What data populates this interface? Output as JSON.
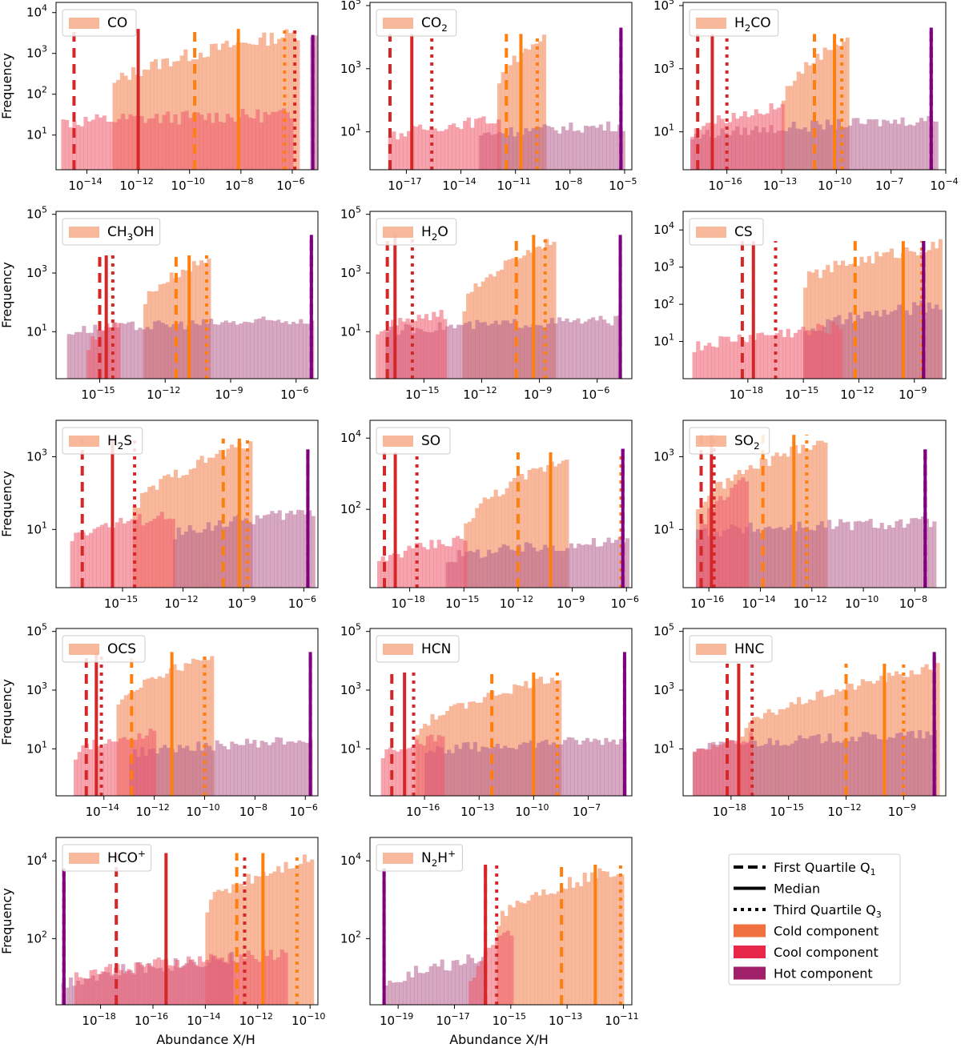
{
  "figure": {
    "ylabel": "Frequency",
    "xlabel": "Abundance X/H"
  },
  "legend": {
    "items": [
      {
        "label": "First Quartile Q",
        "sub": "1",
        "style": "dashed",
        "color": "#000000"
      },
      {
        "label": "Median",
        "sub": "",
        "style": "solid",
        "color": "#000000"
      },
      {
        "label": "Third Quartile Q",
        "sub": "3",
        "style": "dotted",
        "color": "#000000"
      },
      {
        "label": "Cold component",
        "sub": "",
        "style": "patch",
        "color": "#f07040"
      },
      {
        "label": "Cool component",
        "sub": "",
        "style": "patch",
        "color": "#e8284a"
      },
      {
        "label": "Hot component",
        "sub": "",
        "style": "patch",
        "color": "#a0206a"
      }
    ]
  },
  "colors": {
    "cold_fill": "#f4a07a",
    "cool_fill": "#ee5a6c",
    "hot_fill": "#b4608e",
    "cold_line": "#ff7f0e",
    "cool_line": "#d62728",
    "hot_line": "#800080"
  },
  "chart_data": [
    {
      "type": "bar",
      "species": [
        [
          "CO",
          ""
        ]
      ],
      "xlim": [
        -15.2,
        -5.0
      ],
      "xticks": [
        -14,
        -12,
        -10,
        -8,
        -6
      ],
      "yticks": [
        1,
        2,
        3,
        4
      ],
      "ymin": 0.15,
      "ymax": 4.25,
      "cold": {
        "range": [
          -13,
          -5.8
        ],
        "level": [
          2.2,
          3.5
        ]
      },
      "cool": {
        "range": [
          -15,
          -6
        ],
        "level": [
          1.3,
          1.5
        ]
      },
      "hot": {
        "range": [
          -5.3,
          -5.1
        ],
        "level": [
          3.5,
          3.6
        ]
      },
      "quartiles": {
        "cold": [
          -9.8,
          -8.1,
          -6.3
        ],
        "cool": [
          -14.5,
          -12.0,
          -5.9
        ],
        "hot": [
          -5.2,
          -5.2,
          -5.2
        ]
      }
    },
    {
      "type": "bar",
      "species": [
        [
          "CO",
          "2"
        ]
      ],
      "xlim": [
        -19,
        -4.6
      ],
      "xticks": [
        -17,
        -14,
        -11,
        -8,
        -5
      ],
      "yticks": [
        1,
        3,
        5
      ],
      "ymin": -0.2,
      "ymax": 5.1,
      "cold": {
        "range": [
          -12,
          -9.5
        ],
        "level": [
          2.5,
          4.0
        ]
      },
      "cool": {
        "range": [
          -18,
          -12
        ],
        "level": [
          0.8,
          1.4
        ]
      },
      "hot": {
        "range": [
          -13,
          -5.1
        ],
        "level": [
          0.9,
          1.2
        ]
      },
      "quartiles": {
        "cold": [
          -11.5,
          -10.7,
          -9.8
        ],
        "cool": [
          -17.9,
          -16.7,
          -15.6
        ],
        "hot": [
          -5.2,
          -5.2,
          -5.2
        ]
      }
    },
    {
      "type": "bar",
      "species": [
        [
          "H",
          "2"
        ],
        [
          "CO",
          ""
        ]
      ],
      "xlim": [
        -18.4,
        -4.0
      ],
      "xticks": [
        -16,
        -13,
        -10,
        -7,
        -4
      ],
      "yticks": [
        1,
        3,
        5
      ],
      "ymin": -0.2,
      "ymax": 5.1,
      "cold": {
        "range": [
          -13,
          -9.5
        ],
        "level": [
          2.0,
          4.0
        ]
      },
      "cool": {
        "range": [
          -18,
          -13
        ],
        "level": [
          1.0,
          1.8
        ]
      },
      "hot": {
        "range": [
          -18,
          -4.5
        ],
        "level": [
          0.8,
          1.4
        ]
      },
      "quartiles": {
        "cold": [
          -11.2,
          -10.1,
          -9.7
        ],
        "cool": [
          -17.6,
          -16.8,
          -16.0
        ],
        "hot": [
          -4.8,
          -4.8,
          -4.8
        ]
      }
    },
    {
      "type": "bar",
      "species": [
        [
          "CH",
          "3"
        ],
        [
          "OH",
          ""
        ]
      ],
      "xlim": [
        -17.0,
        -5.0
      ],
      "xticks": [
        -15,
        -12,
        -9,
        -6
      ],
      "yticks": [
        1,
        3,
        5
      ],
      "ymin": -0.6,
      "ymax": 5.1,
      "cold": {
        "range": [
          -13,
          -10
        ],
        "level": [
          2.0,
          3.5
        ]
      },
      "cool": {
        "range": [
          -15.6,
          -14.2
        ],
        "level": [
          0.5,
          1.4
        ]
      },
      "hot": {
        "range": [
          -16.5,
          -5.2
        ],
        "level": [
          1.0,
          1.4
        ]
      },
      "quartiles": {
        "cold": [
          -11.5,
          -10.9,
          -10.1
        ],
        "cool": [
          -15.0,
          -14.7,
          -14.4
        ],
        "hot": [
          -5.3,
          -5.3,
          -5.3
        ]
      }
    },
    {
      "type": "bar",
      "species": [
        [
          "H",
          "2"
        ],
        [
          "O",
          ""
        ]
      ],
      "xlim": [
        -17.8,
        -4.2
      ],
      "xticks": [
        -15,
        -12,
        -9,
        -6
      ],
      "yticks": [
        1,
        3,
        5
      ],
      "ymin": -0.6,
      "ymax": 5.1,
      "cold": {
        "range": [
          -13,
          -8.3
        ],
        "level": [
          1.8,
          4.2
        ]
      },
      "cool": {
        "range": [
          -17.5,
          -14
        ],
        "level": [
          1.0,
          1.6
        ]
      },
      "hot": {
        "range": [
          -17,
          -4.8
        ],
        "level": [
          1.0,
          1.4
        ]
      },
      "quartiles": {
        "cold": [
          -10.2,
          -9.3,
          -8.7
        ],
        "cool": [
          -16.9,
          -16.5,
          -15.6
        ],
        "hot": [
          -4.8,
          -4.8,
          -4.8
        ]
      }
    },
    {
      "type": "bar",
      "species": [
        [
          "CS",
          ""
        ]
      ],
      "xlim": [
        -21.5,
        -7.3
      ],
      "xticks": [
        -18,
        -15,
        -12,
        -9
      ],
      "yticks": [
        1,
        2,
        3,
        4
      ],
      "ymin": 0.0,
      "ymax": 4.5,
      "cold": {
        "range": [
          -15,
          -7.6
        ],
        "level": [
          2.6,
          3.6
        ]
      },
      "cool": {
        "range": [
          -21,
          -13
        ],
        "level": [
          0.8,
          1.4
        ]
      },
      "hot": {
        "range": [
          -15,
          -7.6
        ],
        "level": [
          1.2,
          2.0
        ]
      },
      "quartiles": {
        "cold": [
          -12.2,
          -9.6,
          -8.6
        ],
        "cool": [
          -18.3,
          -17.7,
          -16.5
        ],
        "hot": [
          -8.5,
          -8.5,
          -8.5
        ]
      }
    },
    {
      "type": "bar",
      "species": [
        [
          "H",
          "2"
        ],
        [
          "S",
          ""
        ]
      ],
      "xlim": [
        -18.3,
        -5.3
      ],
      "xticks": [
        -15,
        -12,
        -9,
        -6
      ],
      "yticks": [
        1,
        3
      ],
      "ymin": -0.6,
      "ymax": 4.0,
      "cold": {
        "range": [
          -14.5,
          -8.7
        ],
        "level": [
          1.5,
          3.4
        ]
      },
      "cool": {
        "range": [
          -17.6,
          -12.5
        ],
        "level": [
          0.8,
          1.4
        ]
      },
      "hot": {
        "range": [
          -12.5,
          -5.6
        ],
        "level": [
          0.8,
          1.5
        ]
      },
      "quartiles": {
        "cold": [
          -10.0,
          -9.2,
          -8.8
        ],
        "cool": [
          -17.0,
          -15.5,
          -14.4
        ],
        "hot": [
          -5.8,
          -5.8,
          -5.8
        ]
      }
    },
    {
      "type": "bar",
      "species": [
        [
          "SO",
          ""
        ]
      ],
      "xlim": [
        -20.2,
        -5.7
      ],
      "xticks": [
        -18,
        -15,
        -12,
        -9,
        -6
      ],
      "yticks": [
        2,
        4
      ],
      "ymin": -0.2,
      "ymax": 4.5,
      "cold": {
        "range": [
          -15,
          -9.2
        ],
        "level": [
          1.5,
          3.5
        ]
      },
      "cool": {
        "range": [
          -19.8,
          -15
        ],
        "level": [
          0.5,
          1.2
        ]
      },
      "hot": {
        "range": [
          -16,
          -6.0
        ],
        "level": [
          0.6,
          1.1
        ]
      },
      "quartiles": {
        "cold": [
          -12.0,
          -10.2,
          -6.3
        ],
        "cool": [
          -19.4,
          -18.8,
          -17.6
        ],
        "hot": [
          -6.2,
          -6.2,
          -6.2
        ]
      }
    },
    {
      "type": "bar",
      "species": [
        [
          "SO",
          "2"
        ]
      ],
      "xlim": [
        -17.0,
        -6.8
      ],
      "xticks": [
        -16,
        -14,
        -12,
        -10,
        -8
      ],
      "yticks": [
        1,
        3
      ],
      "ymin": -0.6,
      "ymax": 4.0,
      "cold": {
        "range": [
          -16.5,
          -11.5
        ],
        "level": [
          1.5,
          3.5
        ]
      },
      "cool": {
        "range": [
          -16.5,
          -14.5
        ],
        "level": [
          0.8,
          2.4
        ]
      },
      "hot": {
        "range": [
          -16.5,
          -7.2
        ],
        "level": [
          0.9,
          1.2
        ]
      },
      "quartiles": {
        "cold": [
          -13.9,
          -12.7,
          -12.2
        ],
        "cool": [
          -16.3,
          -15.9,
          -15.8
        ],
        "hot": [
          -7.6,
          -7.6,
          -7.6
        ]
      }
    },
    {
      "type": "bar",
      "species": [
        [
          "OCS",
          ""
        ]
      ],
      "xlim": [
        -15.9,
        -5.5
      ],
      "xticks": [
        -14,
        -12,
        -10,
        -8,
        -6
      ],
      "yticks": [
        1,
        3,
        5
      ],
      "ymin": -0.6,
      "ymax": 5.1,
      "cold": {
        "range": [
          -13.5,
          -9.7
        ],
        "level": [
          2.5,
          4.2
        ]
      },
      "cool": {
        "range": [
          -15.2,
          -12.0
        ],
        "level": [
          0.8,
          1.6
        ]
      },
      "hot": {
        "range": [
          -13.0,
          -5.8
        ],
        "level": [
          0.8,
          1.3
        ]
      },
      "quartiles": {
        "cold": [
          -12.9,
          -11.3,
          -10.0
        ],
        "cool": [
          -14.7,
          -14.3,
          -14.1
        ],
        "hot": [
          -5.8,
          -5.8,
          -5.8
        ]
      }
    },
    {
      "type": "bar",
      "species": [
        [
          "HCN",
          ""
        ]
      ],
      "xlim": [
        -19.0,
        -4.6
      ],
      "xticks": [
        -16,
        -13,
        -10,
        -7
      ],
      "yticks": [
        1,
        3,
        5
      ],
      "ymin": -0.6,
      "ymax": 5.1,
      "cold": {
        "range": [
          -16.5,
          -8.5
        ],
        "level": [
          1.5,
          3.5
        ]
      },
      "cool": {
        "range": [
          -18.4,
          -15
        ],
        "level": [
          0.8,
          1.4
        ]
      },
      "hot": {
        "range": [
          -16,
          -5.0
        ],
        "level": [
          0.9,
          1.3
        ]
      },
      "quartiles": {
        "cold": [
          -12.3,
          -10.0,
          -8.7
        ],
        "cool": [
          -17.8,
          -17.1,
          -16.6
        ],
        "hot": [
          -5.0,
          -5.0,
          -5.0
        ]
      }
    },
    {
      "type": "bar",
      "species": [
        [
          "HNC",
          ""
        ]
      ],
      "xlim": [
        -20.5,
        -6.8
      ],
      "xticks": [
        -18,
        -15,
        -12,
        -9
      ],
      "yticks": [
        1,
        3,
        5
      ],
      "ymin": -0.6,
      "ymax": 5.1,
      "cold": {
        "range": [
          -17.5,
          -7.3
        ],
        "level": [
          1.5,
          3.8
        ]
      },
      "cool": {
        "range": [
          -20,
          -17
        ],
        "level": [
          0.8,
          1.4
        ]
      },
      "hot": {
        "range": [
          -20,
          -7.3
        ],
        "level": [
          1.0,
          1.5
        ]
      },
      "quartiles": {
        "cold": [
          -12.0,
          -10.0,
          -9.0
        ],
        "cool": [
          -18.2,
          -17.6,
          -16.9
        ],
        "hot": [
          -7.4,
          -7.4,
          -7.4
        ]
      }
    },
    {
      "type": "bar",
      "species": [
        [
          "HCO",
          "+"
        ]
      ],
      "xlim": [
        -19.7,
        -9.7
      ],
      "xticks": [
        -18,
        -16,
        -14,
        -12,
        -10
      ],
      "yticks": [
        2,
        4
      ],
      "ymin": 0.3,
      "ymax": 4.6,
      "cold": {
        "range": [
          -14,
          -10.0
        ],
        "level": [
          2.8,
          4.1
        ]
      },
      "cool": {
        "range": [
          -19,
          -11.0
        ],
        "level": [
          1.0,
          1.6
        ]
      },
      "hot": {
        "range": [
          -19.5,
          -13.0
        ],
        "level": [
          0.8,
          1.5
        ]
      },
      "quartiles": {
        "cold": [
          -12.8,
          -11.8,
          -10.5
        ],
        "cool": [
          -17.4,
          -15.5,
          -12.5
        ],
        "hot": [
          -19.4,
          -19.4,
          -19.4
        ]
      }
    },
    {
      "type": "bar",
      "species": [
        [
          "N",
          "2"
        ],
        [
          "H",
          "+"
        ]
      ],
      "xlim": [
        -20.0,
        -10.7
      ],
      "xticks": [
        -19,
        -17,
        -15,
        -13,
        -11
      ],
      "yticks": [
        2,
        4
      ],
      "ymin": 0.3,
      "ymax": 4.6,
      "cold": {
        "range": [
          -15.5,
          -11.0
        ],
        "level": [
          2.5,
          3.8
        ]
      },
      "cool": {
        "range": [
          -16.5,
          -15.0
        ],
        "level": [
          0.8,
          2.2
        ]
      },
      "hot": {
        "range": [
          -19.5,
          -16.0
        ],
        "level": [
          0.8,
          1.5
        ]
      },
      "quartiles": {
        "cold": [
          -13.2,
          -12.0,
          -11.1
        ],
        "cool": [
          -15.9,
          -15.9,
          -15.5
        ],
        "hot": [
          -19.5,
          -19.5,
          -19.5
        ]
      }
    }
  ]
}
